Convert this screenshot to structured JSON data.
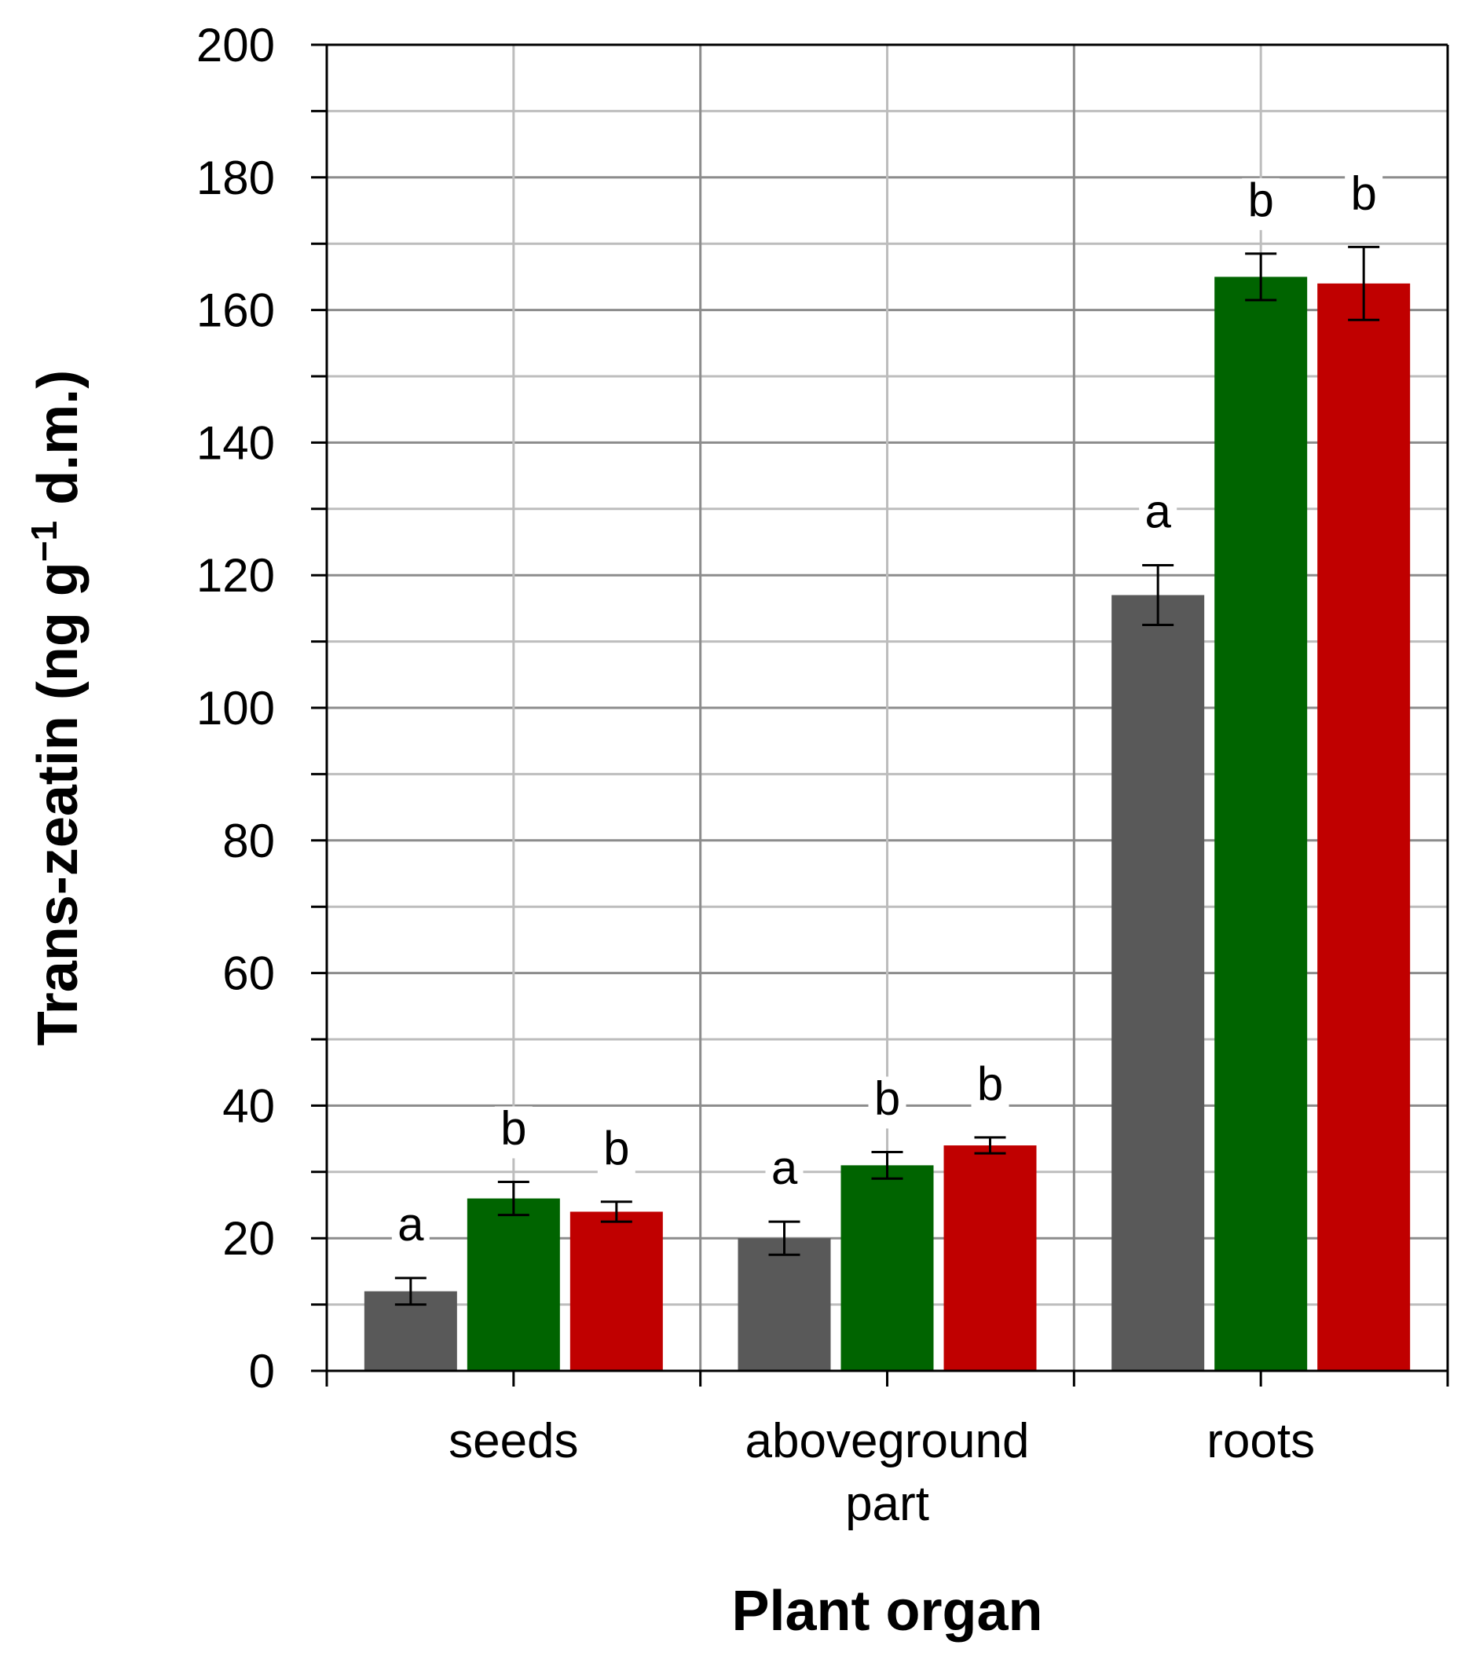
{
  "chart_data": {
    "type": "bar",
    "title": "",
    "xlabel": "Plant organ",
    "ylabel": {
      "main": "Trans-zeatin (ng g",
      "superscript": "−1",
      "tail": " d.m.)"
    },
    "categories": [
      [
        "seeds"
      ],
      [
        "aboveground",
        "part"
      ],
      [
        "roots"
      ]
    ],
    "ylim": [
      0,
      200
    ],
    "yticks": [
      0,
      20,
      40,
      60,
      80,
      100,
      120,
      140,
      160,
      180,
      200
    ],
    "grid": true,
    "legend": "none",
    "series": [
      {
        "color": "#595959",
        "values": [
          12,
          20,
          117
        ],
        "errors": [
          2,
          2.5,
          4.5
        ],
        "letters": [
          "a",
          "a",
          "a"
        ]
      },
      {
        "color": "#006400",
        "values": [
          26,
          31,
          165
        ],
        "errors": [
          2.5,
          2,
          3.5
        ],
        "letters": [
          "b",
          "b",
          "b"
        ]
      },
      {
        "color": "#c00000",
        "values": [
          24,
          34,
          164
        ],
        "errors": [
          1.5,
          1.2,
          5.5
        ],
        "letters": [
          "b",
          "b",
          "b"
        ]
      }
    ]
  }
}
